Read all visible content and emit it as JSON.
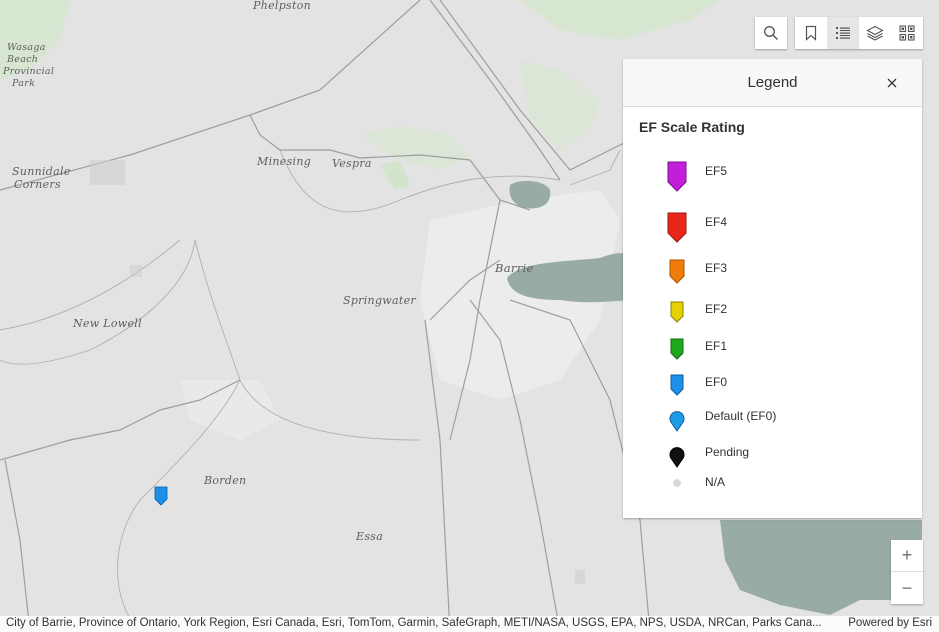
{
  "map": {
    "places": [
      {
        "name": "Phelpston",
        "key": "phelpston"
      },
      {
        "name": "Wasaga",
        "key": "wasaga"
      },
      {
        "name": "Beach",
        "key": "beach"
      },
      {
        "name": "Provincial",
        "key": "provincial"
      },
      {
        "name": "Park",
        "key": "park"
      },
      {
        "name": "Sunnidale",
        "key": "sunnidale"
      },
      {
        "name": "Corners",
        "key": "corners"
      },
      {
        "name": "Minesing",
        "key": "minesing"
      },
      {
        "name": "Vespra",
        "key": "vespra"
      },
      {
        "name": "Barrie",
        "key": "barrie"
      },
      {
        "name": "Springwater",
        "key": "springwater"
      },
      {
        "name": "New Lowell",
        "key": "new-lowell"
      },
      {
        "name": "Borden",
        "key": "borden"
      },
      {
        "name": "Essa",
        "key": "essa"
      }
    ],
    "marker": {
      "rating": "EF0",
      "color": "#1e8fe6"
    }
  },
  "toolbar": {
    "search_icon": "search-icon",
    "buttons": [
      "bookmark-icon",
      "legend-list-icon",
      "layers-icon",
      "basemap-gallery-icon"
    ],
    "active": "legend-list-icon"
  },
  "legend": {
    "title": "Legend",
    "close_icon": "close-icon",
    "section_title": "EF Scale Rating",
    "items": [
      {
        "label": "EF5",
        "color": "#c21fd8",
        "shape": "square-pin-large"
      },
      {
        "label": "EF4",
        "color": "#e8271c",
        "shape": "square-pin-large"
      },
      {
        "label": "EF3",
        "color": "#f07d0a",
        "shape": "square-pin"
      },
      {
        "label": "EF2",
        "color": "#e6d200",
        "shape": "square-pin"
      },
      {
        "label": "EF1",
        "color": "#1ea81e",
        "shape": "square-pin"
      },
      {
        "label": "EF0",
        "color": "#1e8fe6",
        "shape": "square-pin"
      },
      {
        "label": "Default (EF0)",
        "color": "#1e9be6",
        "shape": "round-pin"
      },
      {
        "label": "Pending",
        "color": "#111111",
        "shape": "round-pin"
      },
      {
        "label": "N/A",
        "color": "#d9d9d9",
        "shape": "dot"
      }
    ]
  },
  "zoom": {
    "in_label": "+",
    "out_label": "−"
  },
  "attribution": {
    "text": "City of Barrie, Province of Ontario, York Region, Esri Canada, Esri, TomTom, Garmin, SafeGraph, METI/NASA, USGS, EPA, NPS, USDA, NRCan, Parks Cana...",
    "powered_by": "Powered by Esri"
  }
}
